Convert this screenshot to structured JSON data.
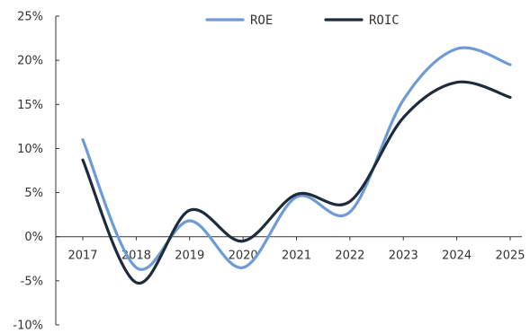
{
  "chart_data": {
    "type": "line",
    "categories": [
      "2017",
      "2018",
      "2019",
      "2020",
      "2021",
      "2022",
      "2023",
      "2024",
      "2025"
    ],
    "series": [
      {
        "name": "ROE",
        "color": "#6e9bd8",
        "values": [
          11.0,
          -3.5,
          1.8,
          -3.5,
          4.5,
          2.8,
          15.5,
          21.3,
          19.5
        ]
      },
      {
        "name": "ROIC",
        "color": "#1d2b3a",
        "values": [
          8.7,
          -5.2,
          3.0,
          -0.5,
          4.8,
          4.0,
          13.5,
          17.5,
          15.8
        ]
      }
    ],
    "y_ticks": [
      "25%",
      "20%",
      "15%",
      "10%",
      "5%",
      "0%",
      "-5%",
      "-10%"
    ],
    "ylim": [
      -10,
      25
    ],
    "y_tick_step": 5,
    "grid": false,
    "legend_position": "top-center",
    "title": "",
    "xlabel": "",
    "ylabel": ""
  }
}
